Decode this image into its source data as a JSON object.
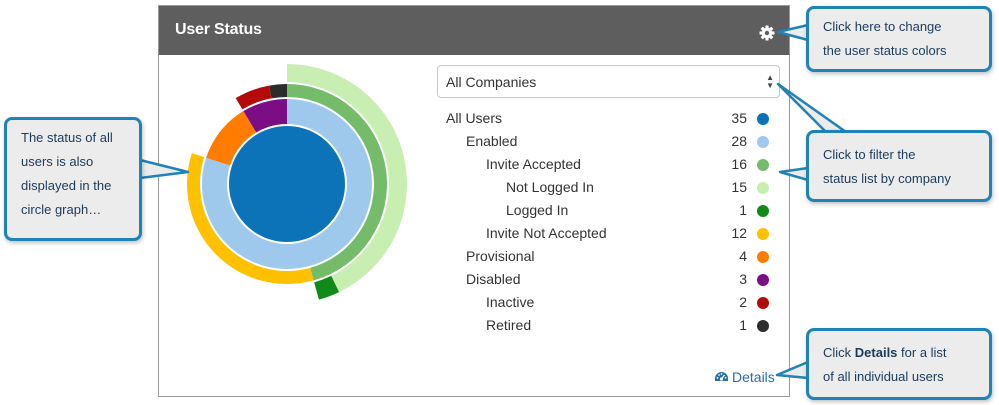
{
  "panel": {
    "title": "User Status",
    "settings_icon": "gear-icon"
  },
  "filter": {
    "selected": "All Companies"
  },
  "status_rows": [
    {
      "label": "All Users",
      "count": "35",
      "color": "#0d73b8",
      "indent": 0
    },
    {
      "label": "Enabled",
      "count": "28",
      "color": "#9fc9ec",
      "indent": 1
    },
    {
      "label": "Invite Accepted",
      "count": "16",
      "color": "#74bb6a",
      "indent": 2
    },
    {
      "label": "Not Logged In",
      "count": "15",
      "color": "#c8eeb2",
      "indent": 3
    },
    {
      "label": "Logged In",
      "count": "1",
      "color": "#108a18",
      "indent": 3
    },
    {
      "label": "Invite Not Accepted",
      "count": "12",
      "color": "#ffc000",
      "indent": 2
    },
    {
      "label": "Provisional",
      "count": "4",
      "color": "#ff7c00",
      "indent": 1
    },
    {
      "label": "Disabled",
      "count": "3",
      "color": "#7b0d85",
      "indent": 1
    },
    {
      "label": "Inactive",
      "count": "2",
      "color": "#b40a0a",
      "indent": 2
    },
    {
      "label": "Retired",
      "count": "1",
      "color": "#2c2c2c",
      "indent": 2
    }
  ],
  "details_link": {
    "label": "Details",
    "icon": "dashboard-icon"
  },
  "callouts": {
    "colors": {
      "line1": "Click here to change",
      "line2": "the user status colors"
    },
    "filter": {
      "line1": "Click to filter the",
      "line2": "status list by company"
    },
    "graph": {
      "line1": "The status of all",
      "line2": "users is also",
      "line3": "displayed in the",
      "line4": "circle graph…"
    },
    "details": {
      "pre": "Click ",
      "bold": "Details",
      "post": " for a list",
      "line2": "of all individual users"
    }
  }
}
